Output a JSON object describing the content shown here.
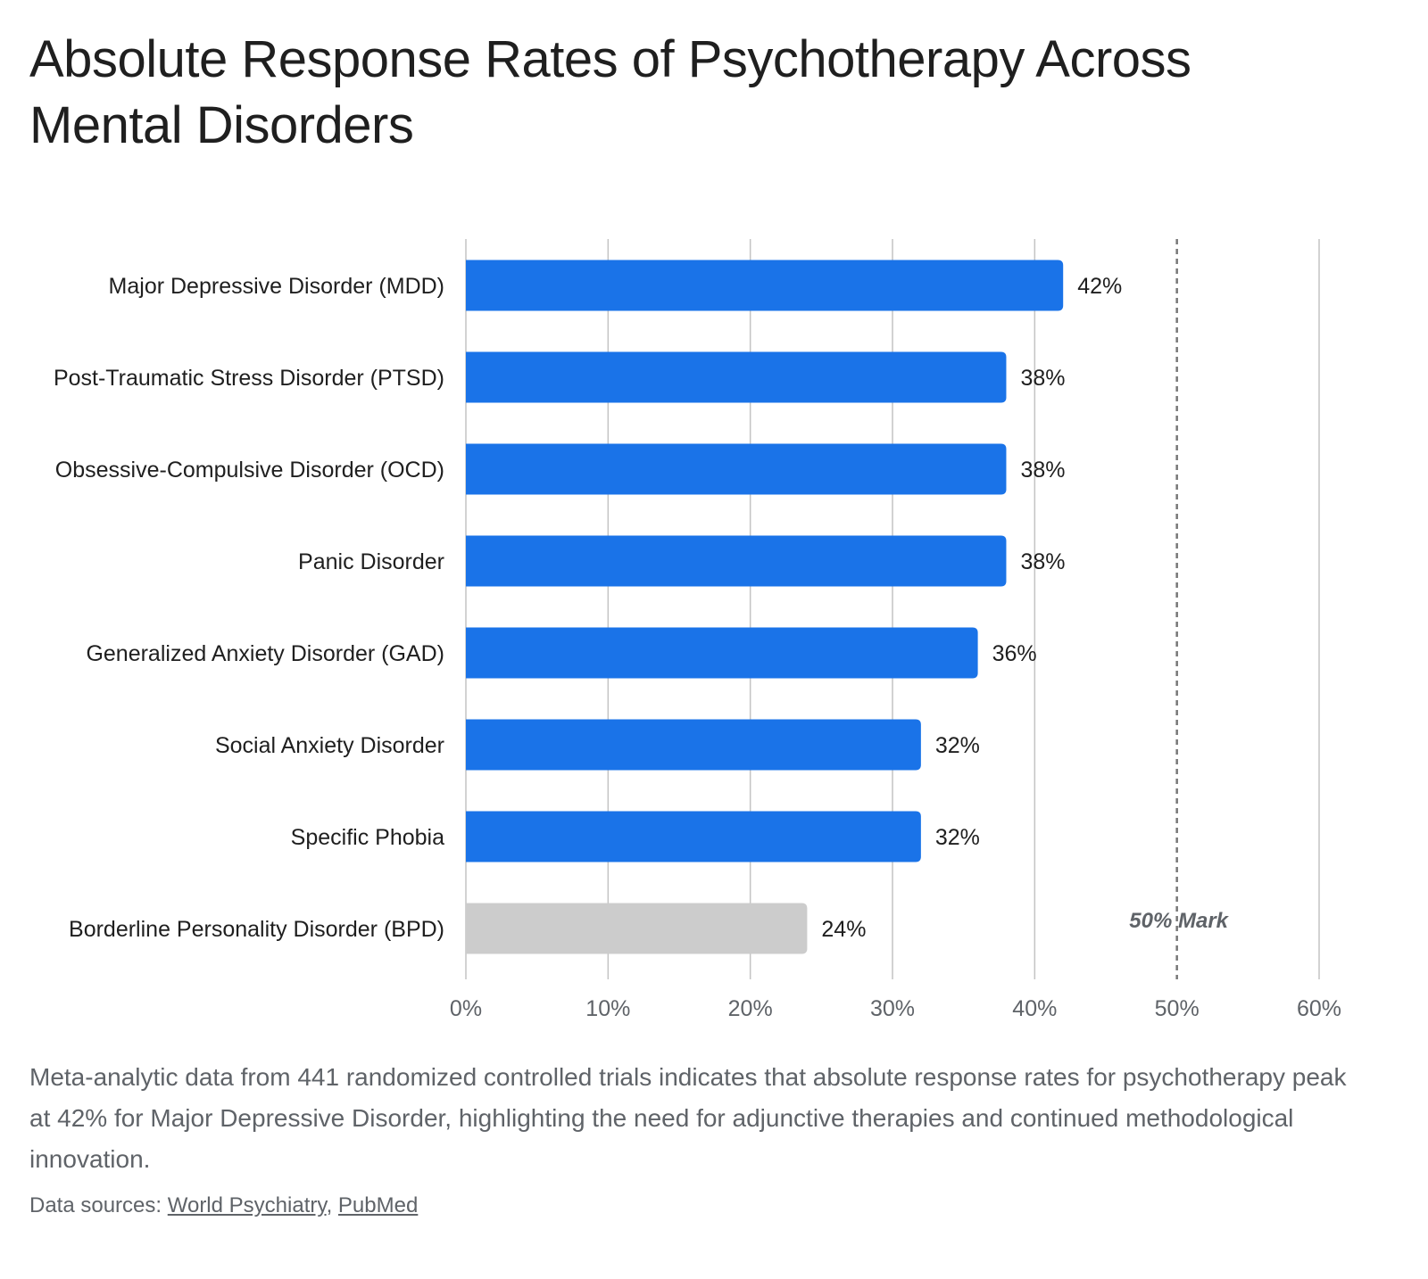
{
  "title": "Absolute Response Rates of Psychotherapy Across Mental Disorders",
  "caption": "Meta-analytic data from 441 randomized controlled trials indicates that absolute response rates for psychotherapy peak at 42% for Major Depressive Disorder, highlighting the need for adjunctive therapies and continued methodological innovation.",
  "sources": {
    "label": "Data sources:",
    "links": [
      "World Psychiatry",
      "PubMed"
    ],
    "separator": ","
  },
  "chart_data": {
    "type": "bar",
    "orientation": "horizontal",
    "title": "Absolute Response Rates of Psychotherapy Across Mental Disorders",
    "xlabel": "",
    "ylabel": "",
    "categories": [
      "Major Depressive Disorder (MDD)",
      "Post-Traumatic Stress Disorder (PTSD)",
      "Obsessive-Compulsive Disorder (OCD)",
      "Panic Disorder",
      "Generalized Anxiety Disorder (GAD)",
      "Social Anxiety Disorder",
      "Specific Phobia",
      "Borderline Personality Disorder (BPD)"
    ],
    "values": [
      42,
      38,
      38,
      38,
      36,
      32,
      32,
      24
    ],
    "value_labels": [
      "42%",
      "38%",
      "38%",
      "38%",
      "36%",
      "32%",
      "32%",
      "24%"
    ],
    "colors": [
      "#1a73e8",
      "#1a73e8",
      "#1a73e8",
      "#1a73e8",
      "#1a73e8",
      "#1a73e8",
      "#1a73e8",
      "#cccccc"
    ],
    "xlim": [
      0,
      60
    ],
    "xticks": [
      0,
      10,
      20,
      30,
      40,
      50,
      60
    ],
    "xtick_labels": [
      "0%",
      "10%",
      "20%",
      "30%",
      "40%",
      "50%",
      "60%"
    ],
    "grid": true,
    "reference_line": {
      "value": 50,
      "label": "50% Mark",
      "style": "dashed"
    }
  }
}
